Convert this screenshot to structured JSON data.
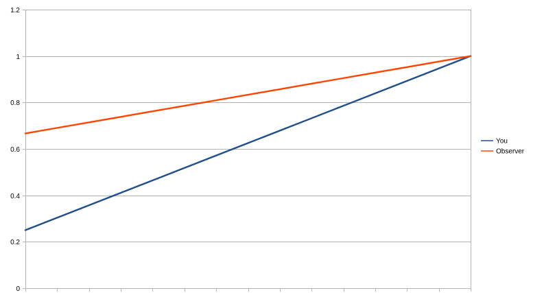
{
  "chart_data": {
    "type": "line",
    "title": "",
    "xlabel": "",
    "ylabel": "",
    "x_categories": 15,
    "ylim": [
      0,
      1.2
    ],
    "y_ticks": [
      0,
      0.2,
      0.4,
      0.6,
      0.8,
      1,
      1.2
    ],
    "y_tick_labels": [
      "0",
      "0.2",
      "0.4",
      "0.6",
      "0.8",
      "1",
      "1.2"
    ],
    "grid": "horizontal",
    "legend_position": "right",
    "series": [
      {
        "name": "You",
        "color": "#1f4e8c",
        "values": [
          0.25,
          0.3036,
          0.3571,
          0.4107,
          0.4643,
          0.5179,
          0.5714,
          0.625,
          0.6786,
          0.7321,
          0.7857,
          0.8393,
          0.8929,
          0.9464,
          1.0
        ]
      },
      {
        "name": "Observer",
        "color": "#ff4500",
        "values": [
          0.6667,
          0.6905,
          0.7143,
          0.7381,
          0.7619,
          0.7857,
          0.8095,
          0.8333,
          0.8571,
          0.881,
          0.9048,
          0.9286,
          0.9524,
          0.9762,
          1.0
        ]
      }
    ]
  }
}
